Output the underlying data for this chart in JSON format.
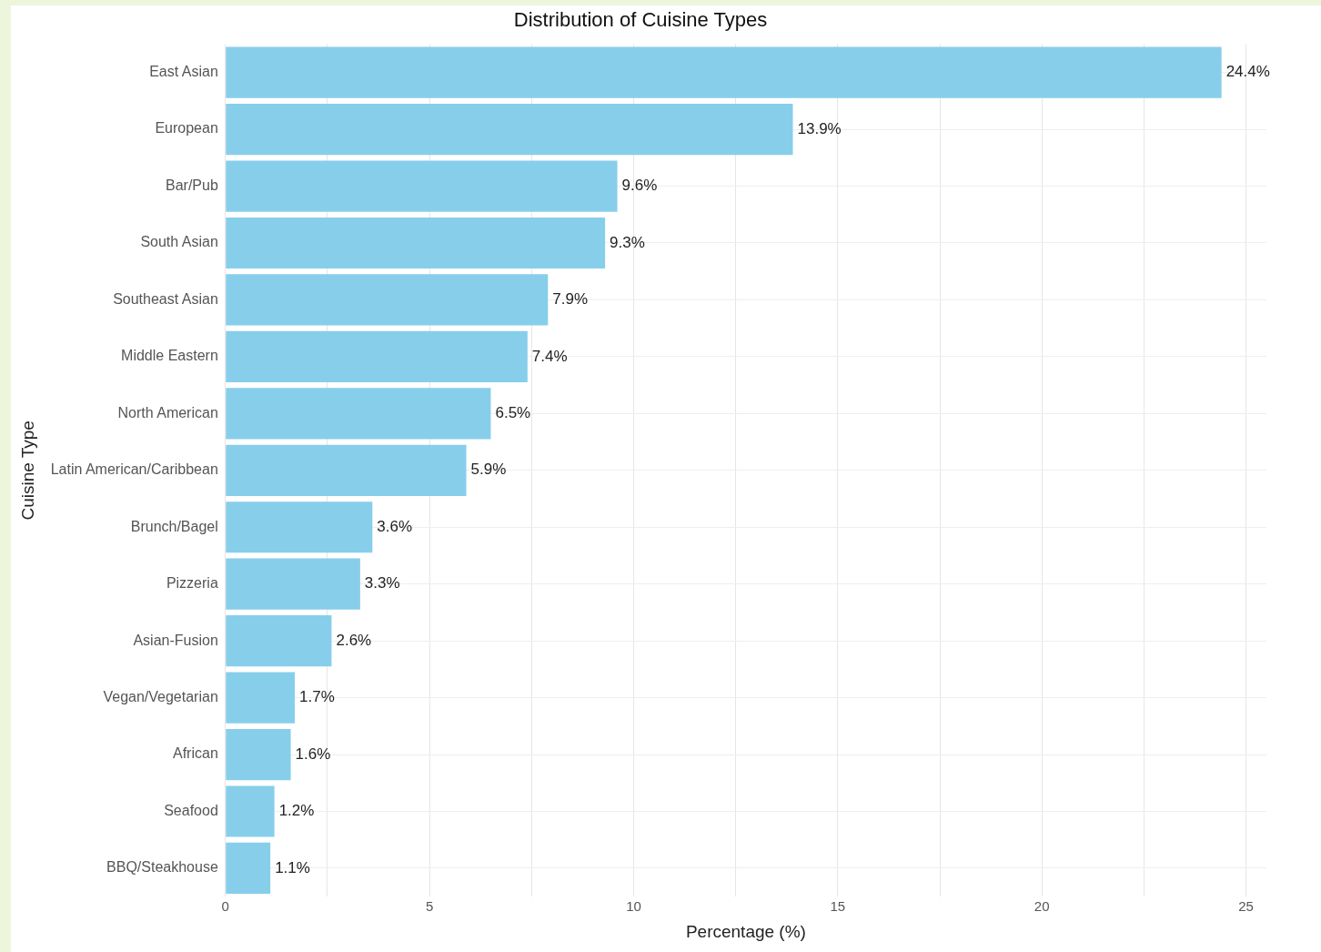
{
  "chart_data": {
    "type": "bar",
    "orientation": "horizontal",
    "title": "Distribution of Cuisine Types",
    "xlabel": "Percentage (%)",
    "ylabel": "Cuisine Type",
    "categories": [
      "East Asian",
      "European",
      "Bar/Pub",
      "South Asian",
      "Southeast Asian",
      "Middle Eastern",
      "North American",
      "Latin American/Caribbean",
      "Brunch/Bagel",
      "Pizzeria",
      "Asian-Fusion",
      "Vegan/Vegetarian",
      "African",
      "Seafood",
      "BBQ/Steakhouse"
    ],
    "values": [
      24.4,
      13.9,
      9.6,
      9.3,
      7.9,
      7.4,
      6.5,
      5.9,
      3.6,
      3.3,
      2.6,
      1.7,
      1.6,
      1.2,
      1.1
    ],
    "value_labels": [
      "24.4%",
      "13.9%",
      "9.6%",
      "9.3%",
      "7.9%",
      "7.4%",
      "6.5%",
      "5.9%",
      "3.6%",
      "3.3%",
      "2.6%",
      "1.7%",
      "1.6%",
      "1.2%",
      "1.1%"
    ],
    "color": "#87ceeb",
    "xlim": [
      0,
      25.5
    ],
    "xticks": [
      0,
      {
        "value": 2.5,
        "label": null
      },
      5,
      {
        "value": 7.5,
        "label": null
      },
      10,
      {
        "value": 12.5,
        "label": null
      },
      15,
      {
        "value": 17.5,
        "label": null
      },
      20,
      {
        "value": 22.5,
        "label": null
      },
      25
    ],
    "grid": true,
    "legend": false
  }
}
